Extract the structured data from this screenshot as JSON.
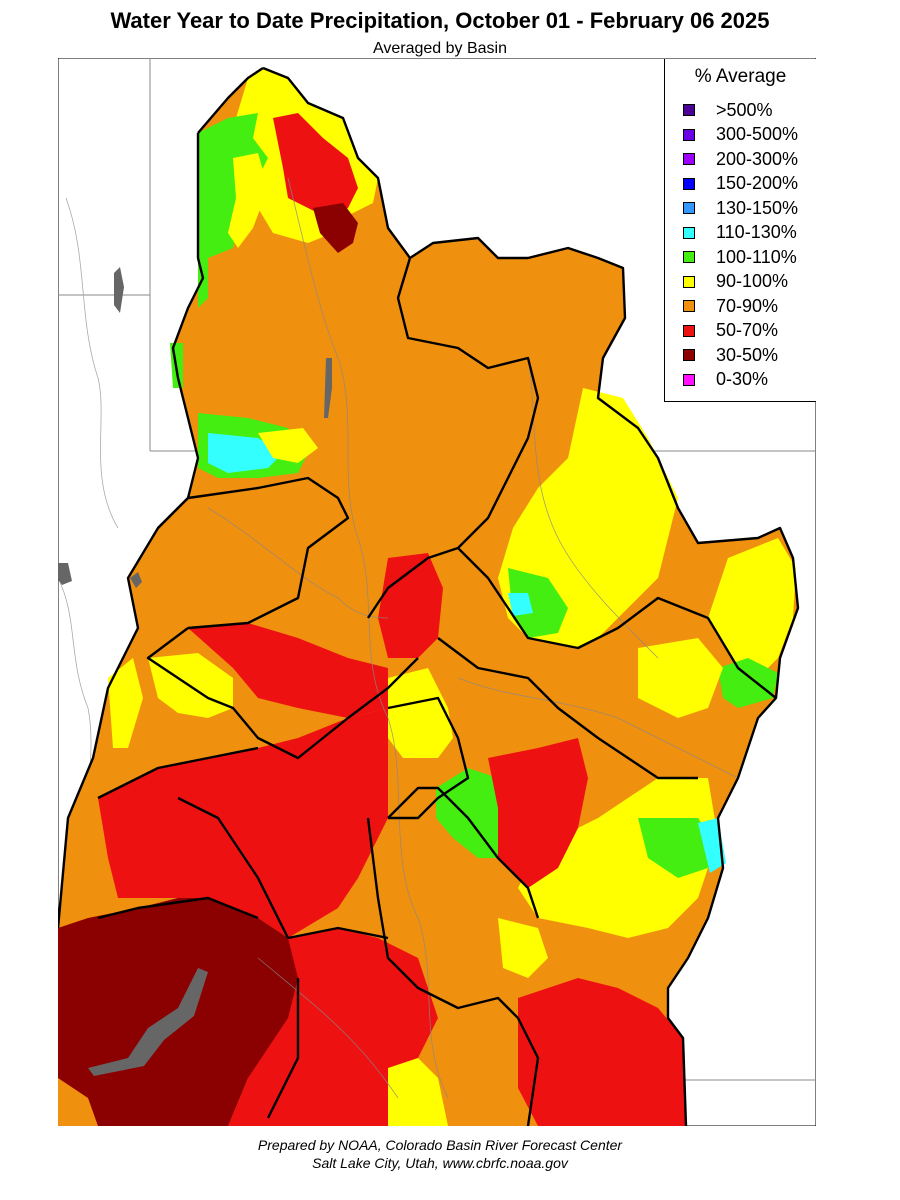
{
  "header": {
    "title": "Water Year to Date Precipitation, October 01  - February 06 2025",
    "subtitle": "Averaged by Basin"
  },
  "legend": {
    "title": "% Average",
    "items": [
      {
        "label": ">500%",
        "color": "#4B0096"
      },
      {
        "label": "300-500%",
        "color": "#6A00E6"
      },
      {
        "label": "200-300%",
        "color": "#9E00FF"
      },
      {
        "label": "150-200%",
        "color": "#0000FF"
      },
      {
        "label": "130-150%",
        "color": "#3399FF"
      },
      {
        "label": "110-130%",
        "color": "#33FFFF"
      },
      {
        "label": "100-110%",
        "color": "#44EE11"
      },
      {
        "label": "90-100%",
        "color": "#FFFF00"
      },
      {
        "label": "70-90%",
        "color": "#F0900F"
      },
      {
        "label": "50-70%",
        "color": "#EE1111"
      },
      {
        "label": "30-50%",
        "color": "#8B0000"
      },
      {
        "label": "0-30%",
        "color": "#FF11FF"
      }
    ]
  },
  "footer": {
    "line1": "Prepared by NOAA, Colorado Basin River Forecast Center",
    "line2": "Salt Lake City, Utah, www.cbrfc.noaa.gov"
  }
}
